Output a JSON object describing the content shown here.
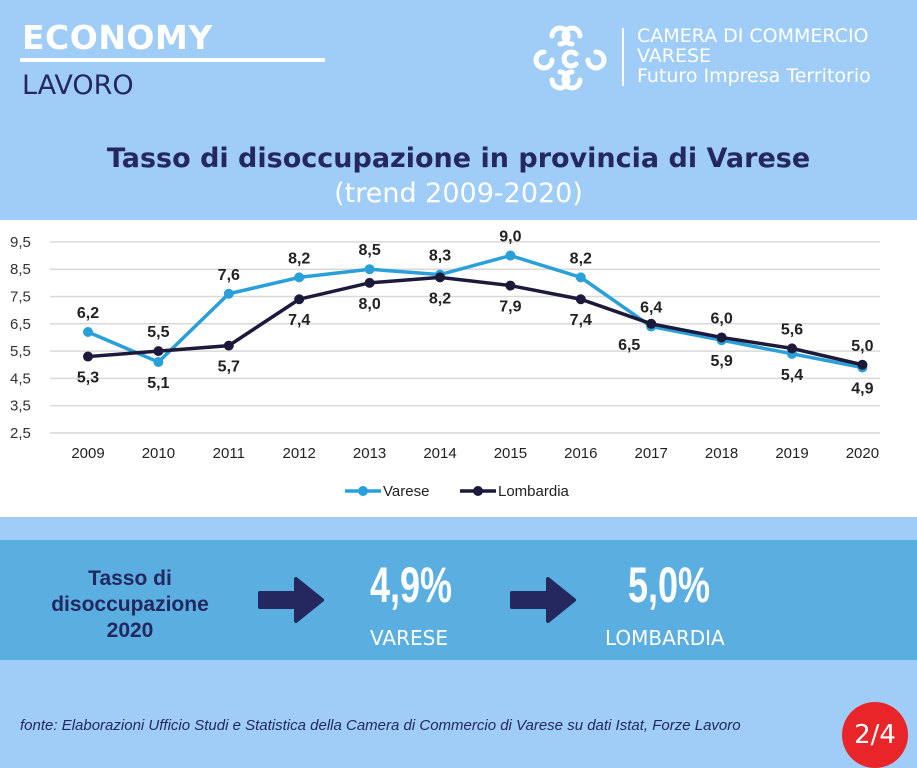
{
  "header": {
    "section": "ECONOMY",
    "subsection": "LAVORO",
    "org_line1": "CAMERA DI COMMERCIO",
    "org_line2": "VARESE",
    "org_line3": "Futuro Impresa Territorio"
  },
  "title": "Tasso di disoccupazione in provincia di Varese",
  "subtitle": "(trend 2009-2020)",
  "chart_data": {
    "type": "line",
    "title": "Tasso di disoccupazione in provincia di Varese",
    "x": [
      "2009",
      "2010",
      "2011",
      "2012",
      "2013",
      "2014",
      "2015",
      "2016",
      "2017",
      "2018",
      "2019",
      "2020"
    ],
    "series": [
      {
        "name": "Varese",
        "color": "#2a9fd8",
        "values": [
          6.2,
          5.1,
          7.6,
          8.2,
          8.5,
          8.3,
          9.0,
          8.2,
          6.4,
          5.9,
          5.4,
          4.9
        ],
        "labels": [
          "6,2",
          "5,1",
          "7,6",
          "8,2",
          "8,5",
          "8,3",
          "9,0",
          "8,2",
          "6,4",
          "5,9",
          "5,4",
          "4,9"
        ]
      },
      {
        "name": "Lombardia",
        "color": "#1c1a3a",
        "values": [
          5.3,
          5.5,
          5.7,
          7.4,
          8.0,
          8.2,
          7.9,
          7.4,
          6.5,
          6.0,
          5.6,
          5.0
        ],
        "labels": [
          "5,3",
          "5,5",
          "5,7",
          "7,4",
          "8,0",
          "8,2",
          "7,9",
          "7,4",
          "6,5",
          "6,0",
          "5,6",
          "5,0"
        ]
      }
    ],
    "yticks": [
      "2,5",
      "3,5",
      "4,5",
      "5,5",
      "6,5",
      "7,5",
      "8,5",
      "9,5"
    ],
    "ylim": [
      2.5,
      9.5
    ],
    "grid": true,
    "legend": "bottom"
  },
  "summary": {
    "label": "Tasso di disoccupazione 2020",
    "varese_value": "4,9%",
    "varese_label": "VARESE",
    "lombardia_value": "5,0%",
    "lombardia_label": "LOMBARDIA"
  },
  "footer": {
    "source": "fonte: Elaborazioni Ufficio Studi e Statistica della Camera di Commercio di Varese su dati Istat, Forze Lavoro",
    "page": "2/4"
  }
}
